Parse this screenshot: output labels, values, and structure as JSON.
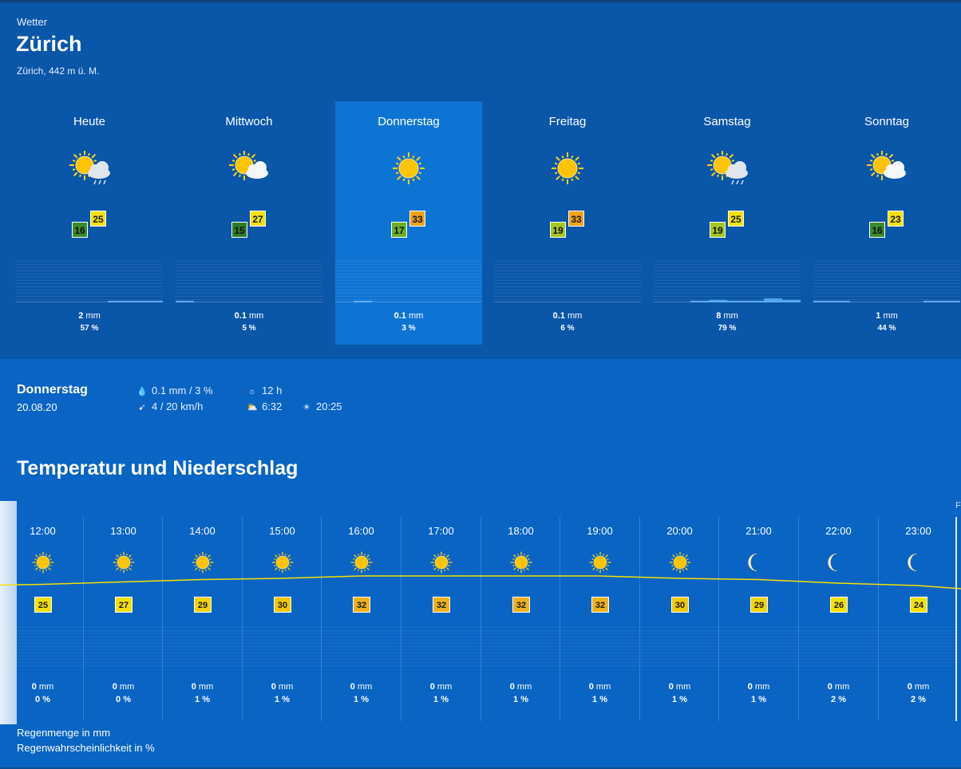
{
  "header": {
    "label": "Wetter",
    "city": "Zürich",
    "altitude": "Zürich, 442 m ü. M."
  },
  "days": [
    {
      "name": "Heute",
      "icon": "sun-cloud-rain-icon",
      "low": "16",
      "high": "25",
      "lowColor": "#3a8a2e",
      "highColor": "#f3e200",
      "rain": "2",
      "rainUnit": "mm",
      "prob": "57 %",
      "rainLevels": [
        0,
        0,
        0,
        0,
        0,
        0.02,
        0.02,
        0.02
      ]
    },
    {
      "name": "Mittwoch",
      "icon": "sun-cloud-icon",
      "low": "15",
      "high": "27",
      "lowColor": "#2f7a28",
      "highColor": "#f3e200",
      "rain": "0.1",
      "rainUnit": "mm",
      "prob": "5 %",
      "rainLevels": [
        0.01,
        0,
        0,
        0,
        0,
        0,
        0,
        0
      ]
    },
    {
      "name": "Donnerstag",
      "icon": "sun-icon",
      "low": "17",
      "high": "33",
      "lowColor": "#6ab026",
      "highColor": "#f0a21a",
      "rain": "0.1",
      "rainUnit": "mm",
      "prob": "3 %",
      "rainLevels": [
        0,
        0.01,
        0,
        0,
        0,
        0,
        0,
        0
      ],
      "selected": true
    },
    {
      "name": "Freitag",
      "icon": "sun-icon",
      "low": "19",
      "high": "33",
      "lowColor": "#a4c91e",
      "highColor": "#f0a21a",
      "rain": "0.1",
      "rainUnit": "mm",
      "prob": "6 %",
      "rainLevels": [
        0,
        0,
        0,
        0,
        0,
        0,
        0,
        0
      ]
    },
    {
      "name": "Samstag",
      "icon": "sun-cloud-rain-icon",
      "low": "19",
      "high": "25",
      "lowColor": "#a4c91e",
      "highColor": "#f3e200",
      "rain": "8",
      "rainUnit": "mm",
      "prob": "79 %",
      "rainLevels": [
        0,
        0,
        0.02,
        0.04,
        0.02,
        0.03,
        0.06,
        0.04
      ]
    },
    {
      "name": "Sonntag",
      "icon": "sun-cloud-icon",
      "low": "16",
      "high": "23",
      "lowColor": "#3a8a2e",
      "highColor": "#f3e200",
      "rain": "1",
      "rainUnit": "mm",
      "prob": "44 %",
      "rainLevels": [
        0.02,
        0.01,
        0,
        0,
        0,
        0,
        0.01,
        0.01
      ]
    }
  ],
  "detail": {
    "day": "Donnerstag",
    "date": "20.08.20",
    "rain": "0.1 mm / 3 %",
    "wind": "4 / 20 km/h",
    "sunshine": "12 h",
    "sunrise": "6:32",
    "sunset": "20:25"
  },
  "section_title": "Temperatur und Niederschlag",
  "hours": [
    {
      "time": "12:00",
      "icon": "sun-icon",
      "temp": "25",
      "color": "#f3e200",
      "rain": "0",
      "prob": "0 %"
    },
    {
      "time": "13:00",
      "icon": "sun-icon",
      "temp": "27",
      "color": "#f3e200",
      "rain": "0",
      "prob": "0 %"
    },
    {
      "time": "14:00",
      "icon": "sun-icon",
      "temp": "29",
      "color": "#f3d400",
      "rain": "0",
      "prob": "1 %"
    },
    {
      "time": "15:00",
      "icon": "sun-icon",
      "temp": "30",
      "color": "#f3c800",
      "rain": "0",
      "prob": "1 %"
    },
    {
      "time": "16:00",
      "icon": "sun-icon",
      "temp": "32",
      "color": "#f0b21a",
      "rain": "0",
      "prob": "1 %"
    },
    {
      "time": "17:00",
      "icon": "sun-icon",
      "temp": "32",
      "color": "#f0b21a",
      "rain": "0",
      "prob": "1 %"
    },
    {
      "time": "18:00",
      "icon": "sun-icon",
      "temp": "32",
      "color": "#f0b21a",
      "rain": "0",
      "prob": "1 %"
    },
    {
      "time": "19:00",
      "icon": "sun-icon",
      "temp": "32",
      "color": "#f0b21a",
      "rain": "0",
      "prob": "1 %"
    },
    {
      "time": "20:00",
      "icon": "sun-icon",
      "temp": "30",
      "color": "#f3c800",
      "rain": "0",
      "prob": "1 %"
    },
    {
      "time": "21:00",
      "icon": "moon-icon",
      "temp": "29",
      "color": "#f3d400",
      "rain": "0",
      "prob": "1 %"
    },
    {
      "time": "22:00",
      "icon": "moon-icon",
      "temp": "26",
      "color": "#f3e200",
      "rain": "0",
      "prob": "2 %"
    },
    {
      "time": "23:00",
      "icon": "moon-icon",
      "temp": "24",
      "color": "#f3e200",
      "rain": "0",
      "prob": "2 %"
    }
  ],
  "hour_unit": "mm",
  "edge_label": "F",
  "legend": {
    "amount": "Regenmenge in mm",
    "probability": "Regenwahrscheinlichkeit in %"
  }
}
